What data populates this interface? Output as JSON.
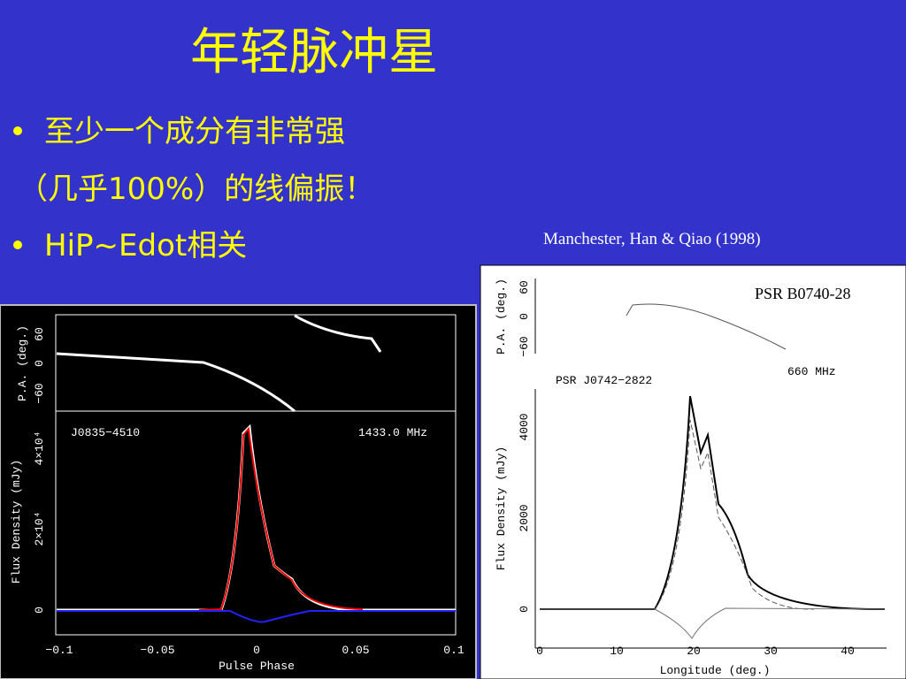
{
  "slide": {
    "title": "年轻脉冲星",
    "bullets": [
      "至少一个成分有非常强",
      "（几乎100%）的线偏振！",
      "HiP~Edot相关"
    ],
    "citation": "Manchester, Han & Qiao (1998)"
  },
  "figure_left": {
    "pa_label": "P.A. (deg.)",
    "pa_ticks": [
      "60",
      "0",
      "−60"
    ],
    "flux_label": "Flux Density (mJy)",
    "flux_ticks": [
      "4×10⁴",
      "2×10⁴",
      "0"
    ],
    "name": "J0835−4510",
    "freq": "1433.0 MHz",
    "x_label": "Pulse Phase",
    "x_ticks": [
      "−0.1",
      "−0.05",
      "0",
      "0.05",
      "0.1"
    ]
  },
  "figure_right": {
    "overlay": "PSR B0740-28",
    "pa_label": "P.A. (deg.)",
    "pa_ticks": [
      "60",
      "0",
      "−60"
    ],
    "freq": "660 MHz",
    "name": "PSR J0742−2822",
    "flux_label": "Flux Density (mJy)",
    "flux_ticks": [
      "4000",
      "2000",
      "0"
    ],
    "x_label": "Longitude (deg.)",
    "x_ticks": [
      "0",
      "10",
      "20",
      "30",
      "40"
    ]
  }
}
